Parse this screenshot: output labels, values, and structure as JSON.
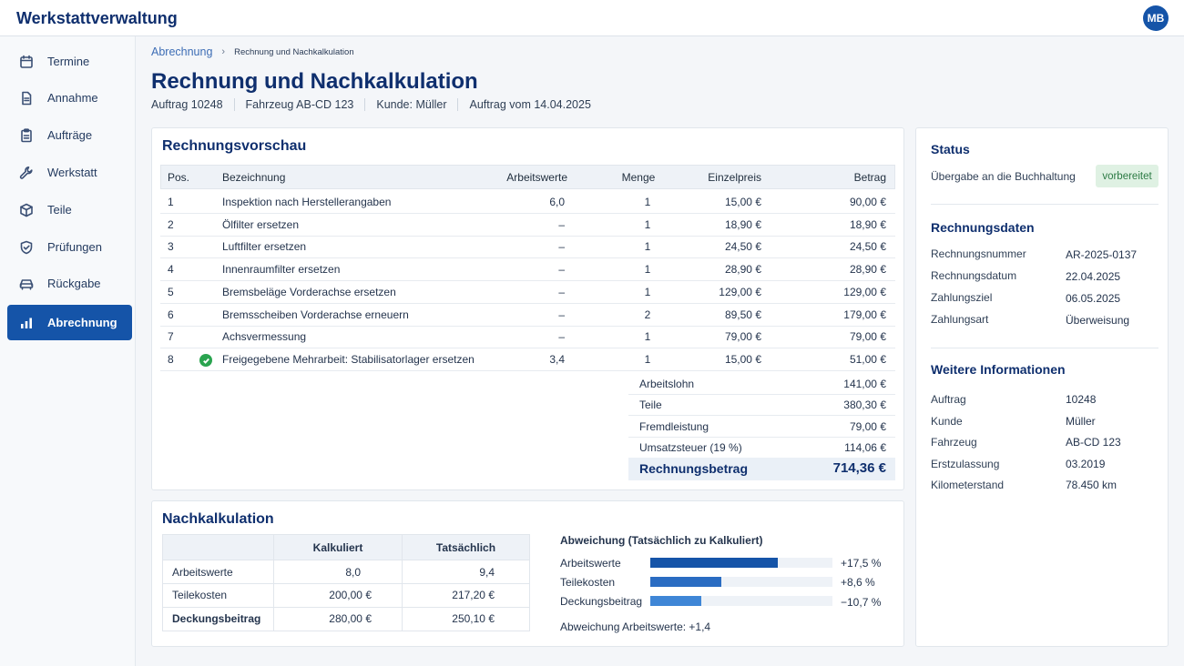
{
  "app": {
    "title": "Werkstattverwaltung",
    "user_initials": "MB"
  },
  "sidebar": {
    "items": [
      {
        "label": "Termine",
        "icon": "calendar-icon"
      },
      {
        "label": "Annahme",
        "icon": "document-icon"
      },
      {
        "label": "Aufträge",
        "icon": "clipboard-icon"
      },
      {
        "label": "Werkstatt",
        "icon": "wrench-icon"
      },
      {
        "label": "Teile",
        "icon": "box-icon"
      },
      {
        "label": "Prüfungen",
        "icon": "shield-icon"
      },
      {
        "label": "Rückgabe",
        "icon": "car-icon"
      },
      {
        "label": "Abrechnung",
        "icon": "bar-chart-icon",
        "active": true
      }
    ]
  },
  "breadcrumb": {
    "parent": "Abrechnung",
    "current": "Rechnung und Nachkalkulation"
  },
  "page": {
    "title": "Rechnung und Nachkalkulation",
    "meta": [
      "Auftrag 10248",
      "Fahrzeug AB-CD 123",
      "Kunde: Müller",
      "Auftrag vom 14.04.2025"
    ]
  },
  "invoice": {
    "title": "Rechnungsvorschau",
    "headers": {
      "pos": "Pos.",
      "desc": "Bezeichnung",
      "aw": "Arbeitswerte",
      "qty": "Menge",
      "unit": "Einzelpreis",
      "amount": "Betrag"
    },
    "rows": [
      {
        "pos": "1",
        "desc": "Inspektion nach Herstellerangaben",
        "aw": "6,0",
        "qty": "1",
        "unit": "15,00 €",
        "amount": "90,00 €"
      },
      {
        "pos": "2",
        "desc": "Ölfilter ersetzen",
        "aw": "–",
        "qty": "1",
        "unit": "18,90 €",
        "amount": "18,90 €"
      },
      {
        "pos": "3",
        "desc": "Luftfilter ersetzen",
        "aw": "–",
        "qty": "1",
        "unit": "24,50 €",
        "amount": "24,50 €"
      },
      {
        "pos": "4",
        "desc": "Innenraumfilter ersetzen",
        "aw": "–",
        "qty": "1",
        "unit": "28,90 €",
        "amount": "28,90 €"
      },
      {
        "pos": "5",
        "desc": "Bremsbeläge Vorderachse ersetzen",
        "aw": "–",
        "qty": "1",
        "unit": "129,00 €",
        "amount": "129,00 €"
      },
      {
        "pos": "6",
        "desc": "Bremsscheiben Vorderachse erneuern",
        "aw": "–",
        "qty": "2",
        "unit": "89,50 €",
        "amount": "179,00 €"
      },
      {
        "pos": "7",
        "desc": "Achsvermessung",
        "aw": "–",
        "qty": "1",
        "unit": "79,00 €",
        "amount": "79,00 €"
      },
      {
        "pos": "8",
        "desc": "Freigegebene Mehrarbeit: Stabilisatorlager ersetzen",
        "aw": "3,4",
        "qty": "1",
        "unit": "15,00 €",
        "amount": "51,00 €",
        "approved": true
      }
    ],
    "summary": [
      {
        "label": "Arbeitslohn",
        "value": "141,00 €"
      },
      {
        "label": "Teile",
        "value": "380,30 €"
      },
      {
        "label": "Fremdleistung",
        "value": "79,00 €"
      },
      {
        "label": "Umsatzsteuer (19 %)",
        "value": "114,06 €"
      }
    ],
    "total": {
      "label": "Rechnungsbetrag",
      "value": "714,36 €"
    }
  },
  "nachkalkulation": {
    "title": "Nachkalkulation",
    "headers": {
      "kalk": "Kalkuliert",
      "ist": "Tatsächlich"
    },
    "rows": [
      {
        "label": "Arbeitswerte",
        "kalk": "8,0",
        "ist": "9,4"
      },
      {
        "label": "Teilekosten",
        "kalk": "200,00 €",
        "ist": "217,20 €"
      },
      {
        "label": "Deckungsbeitrag",
        "kalk": "280,00 €",
        "ist": "250,10 €"
      }
    ],
    "deviation_title": "Abweichung (Tatsächlich zu Kalkuliert)",
    "deviations": [
      {
        "label": "Arbeitswerte",
        "value": "+17,5 %",
        "fill_fraction": 0.7
      },
      {
        "label": "Teilekosten",
        "value": "+8,6 %",
        "fill_fraction": 0.39
      },
      {
        "label": "Deckungsbeitrag",
        "value": "−10,7 %",
        "fill_fraction": 0.28
      }
    ],
    "deviation_note": "Abweichung Arbeitswerte: +1,4"
  },
  "status": {
    "title": "Status",
    "label": "Übergabe an die Buchhaltung",
    "badge": "vorbereitet"
  },
  "rechnungsdaten": {
    "title": "Rechnungsdaten",
    "fields": [
      {
        "label": "Rechnungsnummer",
        "value": "AR-2025-0137"
      },
      {
        "label": "Rechnungsdatum",
        "value": "22.04.2025"
      },
      {
        "label": "Zahlungsziel",
        "value": "06.05.2025"
      },
      {
        "label": "Zahlungsart",
        "value": "Überweisung"
      }
    ]
  },
  "weitere": {
    "title": "Weitere Informationen",
    "fields": [
      {
        "label": "Auftrag",
        "value": "10248"
      },
      {
        "label": "Kunde",
        "value": "Müller"
      },
      {
        "label": "Fahrzeug",
        "value": "AB-CD 123"
      },
      {
        "label": "Erstzulassung",
        "value": "03.2019"
      },
      {
        "label": "Kilometerstand",
        "value": "78.450 km"
      }
    ]
  },
  "colors": {
    "accent": "#1554a8",
    "title": "#0f2f6e",
    "success": "#2aa44f",
    "badge_bg": "#dff1e3"
  }
}
